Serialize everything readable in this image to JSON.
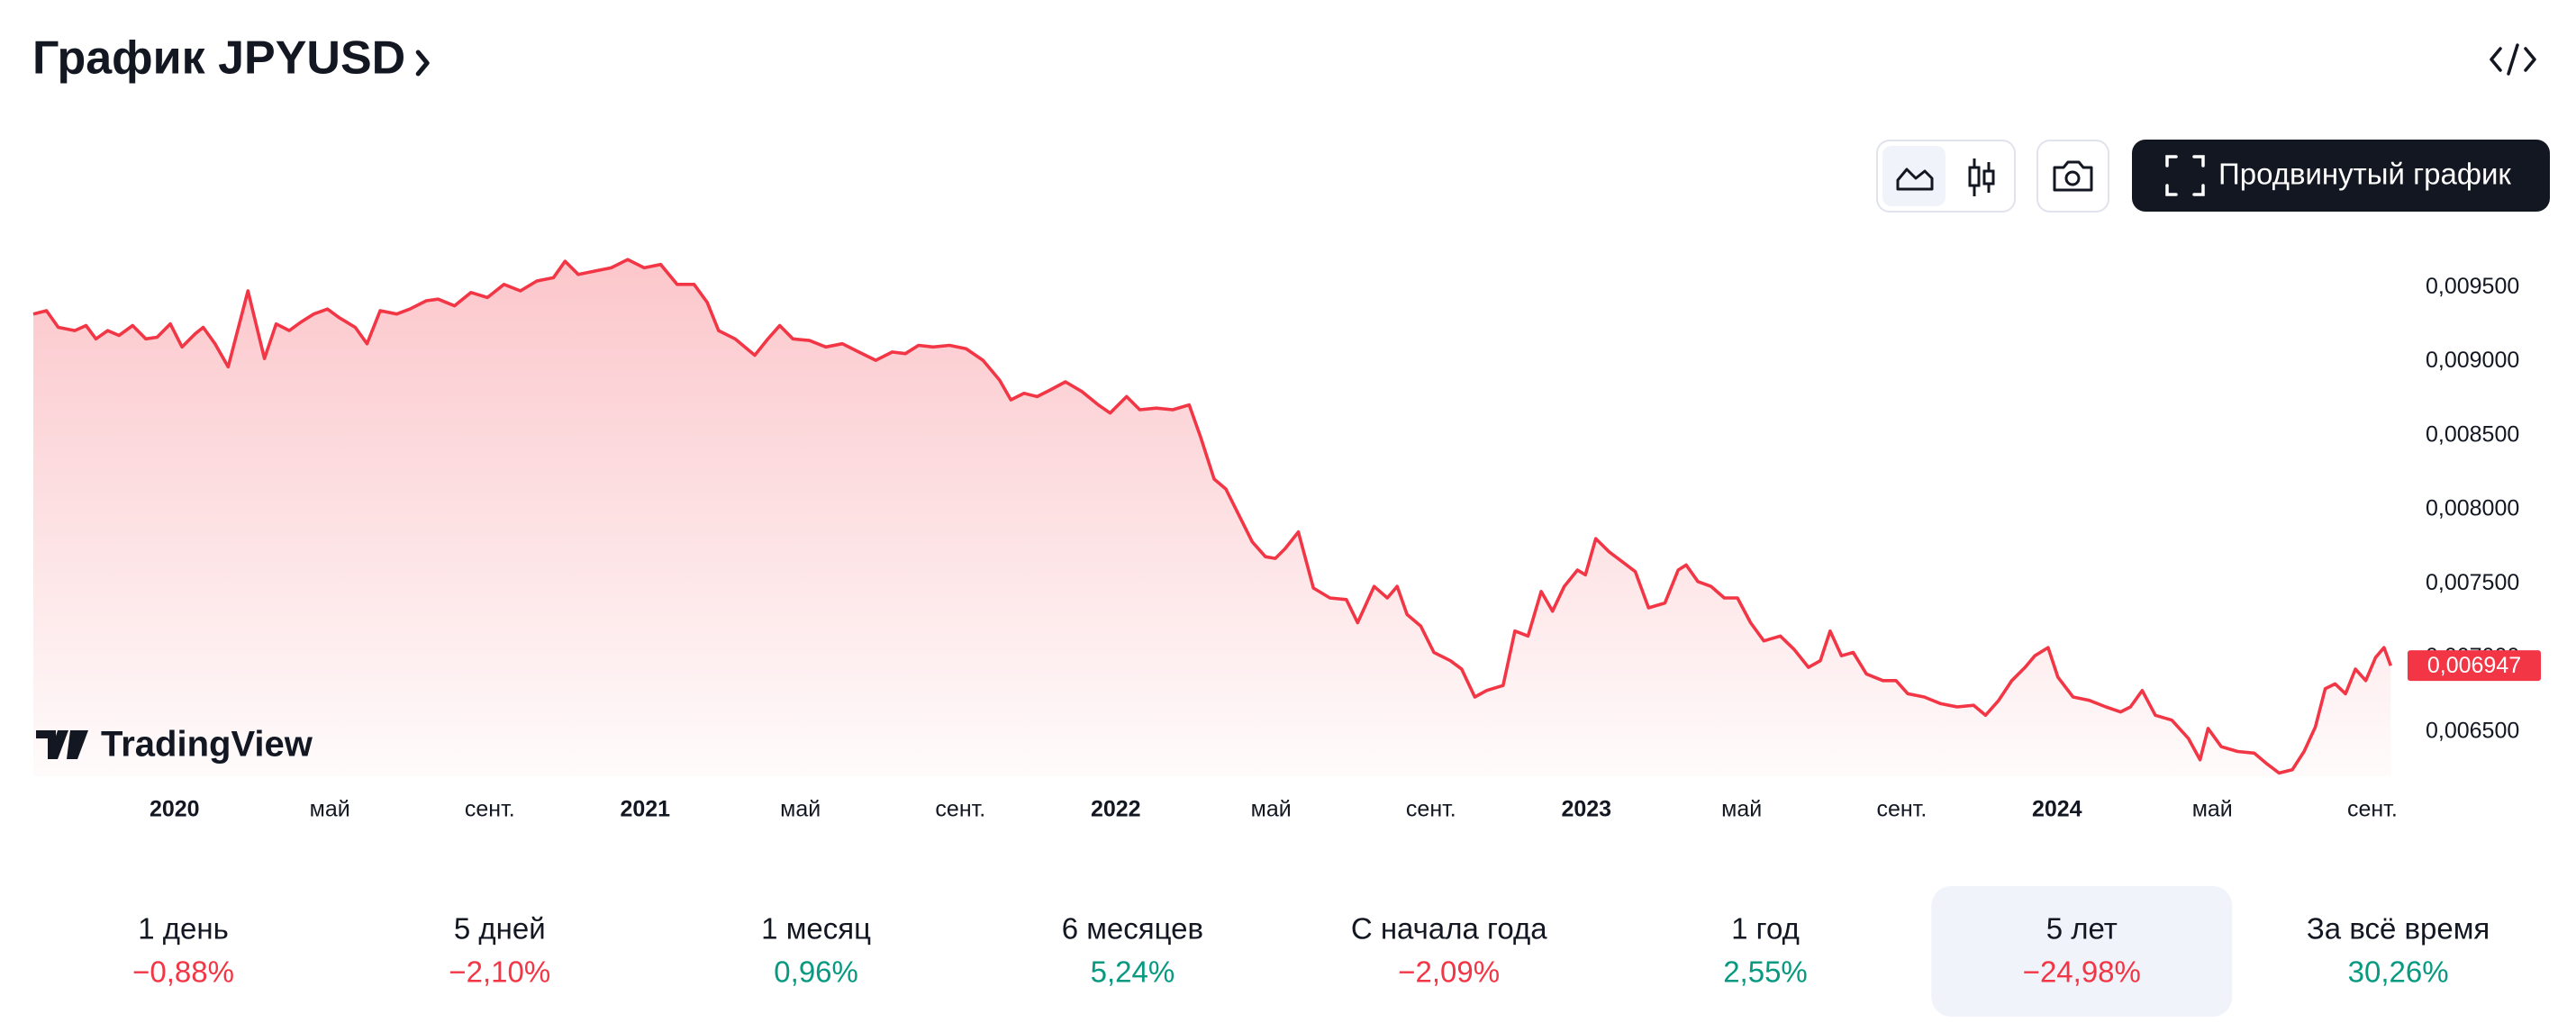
{
  "header": {
    "title": "График JPYUSD"
  },
  "toolbar": {
    "advanced_button": "Продвинутый график"
  },
  "brand": "TradingView",
  "chart_data": {
    "type": "area",
    "color": "#f23645",
    "x": [
      2019.7,
      2019.728,
      2019.753,
      2019.788,
      2019.812,
      2019.833,
      2019.858,
      2019.882,
      2019.911,
      2019.939,
      2019.963,
      2019.991,
      2020.016,
      2020.044,
      2020.061,
      2020.086,
      2020.114,
      2020.156,
      2020.191,
      2020.216,
      2020.244,
      2020.268,
      2020.296,
      2020.325,
      2020.349,
      2020.384,
      2020.409,
      2020.437,
      2020.472,
      2020.5,
      2020.535,
      2020.56,
      2020.595,
      2020.63,
      2020.665,
      2020.7,
      2020.735,
      2020.77,
      2020.805,
      2020.83,
      2020.858,
      2020.893,
      2020.928,
      2020.963,
      2020.998,
      2021.033,
      2021.068,
      2021.104,
      2021.132,
      2021.156,
      2021.191,
      2021.233,
      2021.261,
      2021.286,
      2021.314,
      2021.349,
      2021.384,
      2021.419,
      2021.454,
      2021.49,
      2021.525,
      2021.553,
      2021.581,
      2021.612,
      2021.647,
      2021.682,
      2021.718,
      2021.753,
      2021.777,
      2021.805,
      2021.833,
      2021.861,
      2021.893,
      2021.928,
      2021.963,
      2021.988,
      2022.023,
      2022.051,
      2022.086,
      2022.121,
      2022.156,
      2022.181,
      2022.209,
      2022.234,
      2022.262,
      2022.29,
      2022.318,
      2022.339,
      2022.36,
      2022.388,
      2022.42,
      2022.455,
      2022.49,
      2022.514,
      2022.549,
      2022.577,
      2022.598,
      2022.619,
      2022.648,
      2022.676,
      2022.711,
      2022.735,
      2022.763,
      2022.788,
      2022.823,
      2022.848,
      2022.876,
      2022.904,
      2022.928,
      2022.953,
      2022.981,
      2022.998,
      2023.02,
      2023.048,
      2023.076,
      2023.104,
      2023.132,
      2023.167,
      2023.195,
      2023.212,
      2023.237,
      2023.265,
      2023.293,
      2023.321,
      2023.349,
      2023.377,
      2023.412,
      2023.441,
      2023.472,
      2023.497,
      2023.518,
      2023.542,
      2023.567,
      2023.595,
      2023.63,
      2023.658,
      2023.683,
      2023.718,
      2023.753,
      2023.788,
      2023.823,
      2023.848,
      2023.876,
      2023.904,
      2023.932,
      2023.953,
      2023.981,
      2024.002,
      2024.034,
      2024.069,
      2024.104,
      2024.135,
      2024.156,
      2024.181,
      2024.209,
      2024.244,
      2024.279,
      2024.304,
      2024.321,
      2024.349,
      2024.384,
      2024.419,
      2024.444,
      2024.472,
      2024.5,
      2024.525,
      2024.549,
      2024.57,
      2024.591,
      2024.613,
      2024.634,
      2024.656,
      2024.677,
      2024.695,
      2024.709
    ],
    "values": [
      0.009322,
      0.009344,
      0.009232,
      0.00921,
      0.009244,
      0.009154,
      0.00921,
      0.009177,
      0.009244,
      0.009154,
      0.009165,
      0.009255,
      0.009099,
      0.009188,
      0.009232,
      0.009121,
      0.008965,
      0.009478,
      0.009021,
      0.009255,
      0.00921,
      0.009266,
      0.009322,
      0.009355,
      0.009299,
      0.009232,
      0.009121,
      0.009344,
      0.009322,
      0.009355,
      0.009411,
      0.009422,
      0.009377,
      0.009467,
      0.009433,
      0.009522,
      0.009478,
      0.009545,
      0.009567,
      0.009678,
      0.009589,
      0.009612,
      0.009634,
      0.00969,
      0.009634,
      0.009656,
      0.009522,
      0.009522,
      0.0094,
      0.00921,
      0.009154,
      0.009043,
      0.009154,
      0.009244,
      0.009154,
      0.009143,
      0.009099,
      0.009121,
      0.009065,
      0.009009,
      0.009065,
      0.009054,
      0.00911,
      0.009099,
      0.00911,
      0.009087,
      0.009009,
      0.008876,
      0.008742,
      0.008786,
      0.008764,
      0.008809,
      0.008864,
      0.008798,
      0.008708,
      0.008653,
      0.008764,
      0.008675,
      0.008686,
      0.008675,
      0.008708,
      0.008485,
      0.008207,
      0.00814,
      0.007961,
      0.007783,
      0.007683,
      0.007671,
      0.007738,
      0.00785,
      0.007471,
      0.007404,
      0.007393,
      0.007237,
      0.007482,
      0.007404,
      0.007482,
      0.007292,
      0.007214,
      0.007036,
      0.00698,
      0.006924,
      0.006735,
      0.006779,
      0.006813,
      0.007181,
      0.007147,
      0.007448,
      0.007315,
      0.007482,
      0.007593,
      0.00756,
      0.007805,
      0.007716,
      0.007649,
      0.007582,
      0.007337,
      0.00737,
      0.007593,
      0.007627,
      0.007515,
      0.007482,
      0.007404,
      0.007404,
      0.007237,
      0.007114,
      0.007147,
      0.007058,
      0.006935,
      0.00698,
      0.007181,
      0.007014,
      0.007036,
      0.006891,
      0.006846,
      0.006846,
      0.006757,
      0.006735,
      0.00669,
      0.006668,
      0.006679,
      0.006612,
      0.006712,
      0.006846,
      0.006935,
      0.007014,
      0.007069,
      0.006869,
      0.006735,
      0.006712,
      0.006668,
      0.006634,
      0.006668,
      0.006779,
      0.006612,
      0.006579,
      0.006456,
      0.006311,
      0.006523,
      0.0064,
      0.006367,
      0.006356,
      0.006289,
      0.006222,
      0.006244,
      0.006367,
      0.006534,
      0.006791,
      0.006824,
      0.006757,
      0.006924,
      0.006846,
      0.007002,
      0.007069,
      0.006947
    ],
    "xlim": [
      2019.7,
      2024.72
    ],
    "xticks": [
      2020,
      {
        "value": 2020.33,
        "label": "май"
      },
      {
        "value": 2020.67,
        "label": "сент."
      },
      2021,
      {
        "value": 2021.33,
        "label": "май"
      },
      {
        "value": 2021.67,
        "label": "сент."
      },
      2022,
      {
        "value": 2022.33,
        "label": "май"
      },
      {
        "value": 2022.67,
        "label": "сент."
      },
      2023,
      {
        "value": 2023.33,
        "label": "май"
      },
      {
        "value": 2023.67,
        "label": "сент."
      },
      2024,
      {
        "value": 2024.33,
        "label": "май"
      },
      {
        "value": 2024.67,
        "label": "сент."
      }
    ],
    "ylim": [
      0.0062,
      0.00977
    ],
    "yticks": [
      {
        "value": 0.0065,
        "label": "0,006500"
      },
      {
        "value": 0.007,
        "label": "0,007000"
      },
      {
        "value": 0.0075,
        "label": "0,007500"
      },
      {
        "value": 0.008,
        "label": "0,008000"
      },
      {
        "value": 0.0085,
        "label": "0,008500"
      },
      {
        "value": 0.009,
        "label": "0,009000"
      },
      {
        "value": 0.0095,
        "label": "0,009500"
      }
    ],
    "last_price": {
      "value": 0.006947,
      "label": "0,006947"
    }
  },
  "performance": [
    {
      "label": "1 день",
      "change": {
        "value": -0.88,
        "label": "−0,88%"
      }
    },
    {
      "label": "5 дней",
      "change": {
        "value": -2.1,
        "label": "−2,10%"
      }
    },
    {
      "label": "1 месяц",
      "change": {
        "value": 0.96,
        "label": "0,96%"
      }
    },
    {
      "label": "6 месяцев",
      "change": {
        "value": 5.24,
        "label": "5,24%"
      }
    },
    {
      "label": "С начала года",
      "change": {
        "value": -2.09,
        "label": "−2,09%"
      }
    },
    {
      "label": "1 год",
      "change": {
        "value": 2.55,
        "label": "2,55%"
      }
    },
    {
      "label": "5 лет",
      "change": {
        "value": -24.98,
        "label": "−24,98%"
      },
      "active": true
    },
    {
      "label": "За всё время",
      "change": {
        "value": 30.26,
        "label": "30,26%"
      }
    }
  ]
}
